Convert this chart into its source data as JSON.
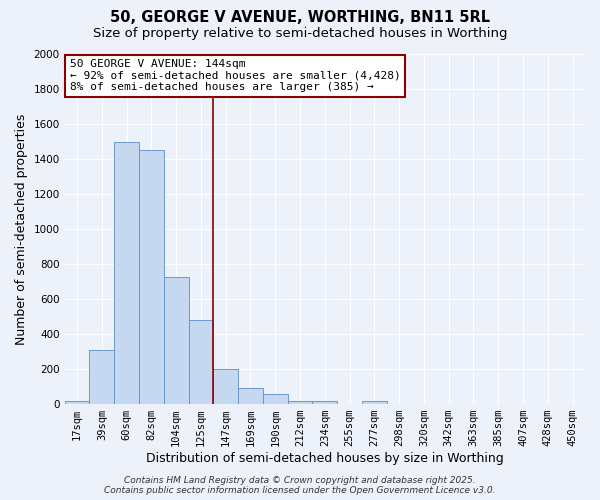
{
  "title_line1": "50, GEORGE V AVENUE, WORTHING, BN11 5RL",
  "title_line2": "Size of property relative to semi-detached houses in Worthing",
  "xlabel": "Distribution of semi-detached houses by size in Worthing",
  "ylabel": "Number of semi-detached properties",
  "bar_labels": [
    "17sqm",
    "39sqm",
    "60sqm",
    "82sqm",
    "104sqm",
    "125sqm",
    "147sqm",
    "169sqm",
    "190sqm",
    "212sqm",
    "234sqm",
    "255sqm",
    "277sqm",
    "298sqm",
    "320sqm",
    "342sqm",
    "363sqm",
    "385sqm",
    "407sqm",
    "428sqm",
    "450sqm"
  ],
  "bar_values": [
    15,
    310,
    1500,
    1450,
    725,
    480,
    200,
    90,
    55,
    15,
    15,
    0,
    15,
    0,
    0,
    0,
    0,
    0,
    0,
    0,
    0
  ],
  "bar_color": "#c5d8f0",
  "bar_edge_color": "#5b8fc9",
  "vline_color": "#8b0000",
  "vline_x_index": 6,
  "ylim": [
    0,
    2000
  ],
  "yticks": [
    0,
    200,
    400,
    600,
    800,
    1000,
    1200,
    1400,
    1600,
    1800,
    2000
  ],
  "annotation_title": "50 GEORGE V AVENUE: 144sqm",
  "annotation_line1": "← 92% of semi-detached houses are smaller (4,428)",
  "annotation_line2": "8% of semi-detached houses are larger (385) →",
  "annotation_box_facecolor": "#ffffff",
  "annotation_box_edgecolor": "#8b0000",
  "footer_line1": "Contains HM Land Registry data © Crown copyright and database right 2025.",
  "footer_line2": "Contains public sector information licensed under the Open Government Licence v3.0.",
  "bg_color": "#edf2fa",
  "grid_color": "#ffffff",
  "title_fontsize": 10.5,
  "subtitle_fontsize": 9.5,
  "axis_label_fontsize": 9,
  "tick_fontsize": 7.5,
  "annotation_fontsize": 8,
  "footer_fontsize": 6.5
}
